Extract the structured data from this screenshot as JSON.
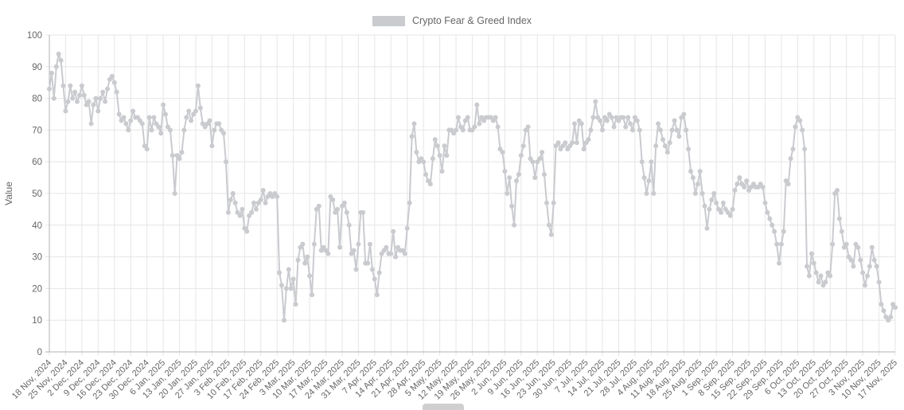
{
  "chart_data": {
    "type": "line",
    "title": "Crypto Fear & Greed Index",
    "legend": {
      "label": "Crypto Fear & Greed Index",
      "position": "top"
    },
    "x_axis": {
      "start": "18 Nov, 2024",
      "end": "17 Nov, 2025",
      "frequency": "daily",
      "tick_every_days": 7,
      "tick_labels": [
        "18 Nov, 2024",
        "25 Nov, 2024",
        "2 Dec, 2024",
        "9 Dec, 2024",
        "16 Dec, 2024",
        "23 Dec, 2024",
        "30 Dec, 2024",
        "6 Jan, 2025",
        "13 Jan, 2025",
        "20 Jan, 2025",
        "27 Jan, 2025",
        "3 Feb, 2025",
        "10 Feb, 2025",
        "17 Feb, 2025",
        "24 Feb, 2025",
        "3 Mar, 2025",
        "10 Mar, 2025",
        "17 Mar, 2025",
        "24 Mar, 2025",
        "31 Mar, 2025",
        "7 Apr, 2025",
        "14 Apr, 2025",
        "21 Apr, 2025",
        "28 Apr, 2025",
        "5 May, 2025",
        "12 May, 2025",
        "19 May, 2025",
        "26 May, 2025",
        "2 Jun, 2025",
        "9 Jun, 2025",
        "16 Jun, 2025",
        "23 Jun, 2025",
        "30 Jun, 2025",
        "7 Jul, 2025",
        "14 Jul, 2025",
        "21 Jul, 2025",
        "28 Jul, 2025",
        "4 Aug, 2025",
        "11 Aug, 2025",
        "18 Aug, 2025",
        "25 Aug, 2025",
        "1 Sep, 2025",
        "8 Sep, 2025",
        "15 Sep, 2025",
        "22 Sep, 2025",
        "29 Sep, 2025",
        "6 Oct, 2025",
        "13 Oct, 2025",
        "20 Oct, 2025",
        "27 Oct, 2025",
        "3 Nov, 2025",
        "10 Nov, 2025",
        "17 Nov, 2025"
      ]
    },
    "y_axis": {
      "title": "Value",
      "min": 0,
      "max": 100,
      "ticks": [
        0,
        10,
        20,
        30,
        40,
        50,
        60,
        70,
        80,
        90,
        100
      ]
    },
    "grid": true,
    "colors": {
      "line": "#c9cbcf",
      "point": "#c9cbcf",
      "grid": "#e6e6e6",
      "axis": "#b3b3b3",
      "tick_text": "#666666"
    },
    "values": [
      83,
      88,
      80,
      90,
      94,
      92,
      84,
      76,
      79,
      84,
      80,
      82,
      79,
      81,
      84,
      81,
      78,
      79,
      72,
      78,
      80,
      76,
      80,
      82,
      79,
      83,
      86,
      87,
      85,
      82,
      75,
      73,
      74,
      72,
      70,
      73,
      76,
      74,
      74,
      73,
      72,
      65,
      64,
      74,
      70,
      74,
      72,
      71,
      69,
      78,
      75,
      71,
      70,
      62,
      50,
      62,
      61,
      63,
      70,
      74,
      76,
      73,
      75,
      76,
      84,
      77,
      72,
      71,
      72,
      73,
      65,
      70,
      72,
      72,
      70,
      69,
      60,
      44,
      48,
      50,
      47,
      44,
      43,
      45,
      39,
      38,
      43,
      44,
      47,
      45,
      47,
      48,
      51,
      47,
      49,
      50,
      49,
      50,
      49,
      25,
      21,
      10,
      20,
      26,
      20,
      23,
      15,
      29,
      33,
      34,
      28,
      30,
      24,
      18,
      34,
      45,
      46,
      32,
      33,
      32,
      31,
      49,
      48,
      44,
      45,
      33,
      46,
      47,
      44,
      40,
      31,
      32,
      26,
      34,
      44,
      44,
      28,
      28,
      34,
      26,
      23,
      18,
      25,
      31,
      32,
      33,
      31,
      31,
      38,
      30,
      33,
      32,
      32,
      31,
      39,
      47,
      68,
      72,
      63,
      60,
      61,
      60,
      56,
      54,
      53,
      61,
      67,
      65,
      62,
      57,
      65,
      62,
      70,
      70,
      69,
      70,
      74,
      71,
      70,
      73,
      74,
      70,
      70,
      71,
      78,
      72,
      74,
      73,
      74,
      74,
      74,
      73,
      74,
      71,
      64,
      63,
      57,
      50,
      55,
      46,
      40,
      54,
      56,
      62,
      65,
      70,
      71,
      61,
      60,
      55,
      60,
      61,
      63,
      56,
      47,
      40,
      37,
      47,
      65,
      66,
      64,
      65,
      66,
      64,
      65,
      66,
      72,
      66,
      73,
      72,
      64,
      66,
      67,
      70,
      74,
      79,
      74,
      73,
      70,
      74,
      73,
      75,
      74,
      71,
      74,
      73,
      74,
      74,
      71,
      74,
      72,
      70,
      74,
      73,
      70,
      60,
      55,
      50,
      54,
      60,
      50,
      65,
      72,
      70,
      67,
      65,
      63,
      66,
      70,
      73,
      70,
      68,
      74,
      75,
      70,
      64,
      57,
      55,
      50,
      53,
      57,
      50,
      46,
      39,
      45,
      48,
      50,
      47,
      45,
      44,
      47,
      45,
      44,
      43,
      45,
      51,
      53,
      55,
      53,
      52,
      54,
      51,
      52,
      53,
      52,
      52,
      53,
      52,
      47,
      44,
      42,
      40,
      38,
      34,
      28,
      34,
      38,
      54,
      53,
      61,
      64,
      71,
      74,
      73,
      70,
      64,
      27,
      24,
      31,
      28,
      25,
      22,
      24,
      21,
      22,
      25,
      24,
      34,
      50,
      51,
      42,
      38,
      33,
      34,
      30,
      29,
      27,
      34,
      33,
      29,
      25,
      21,
      24,
      27,
      33,
      29,
      27,
      22,
      15,
      13,
      11,
      10,
      11,
      15,
      14
    ]
  },
  "footer": {
    "partial_legend_swatch_visible": true
  }
}
